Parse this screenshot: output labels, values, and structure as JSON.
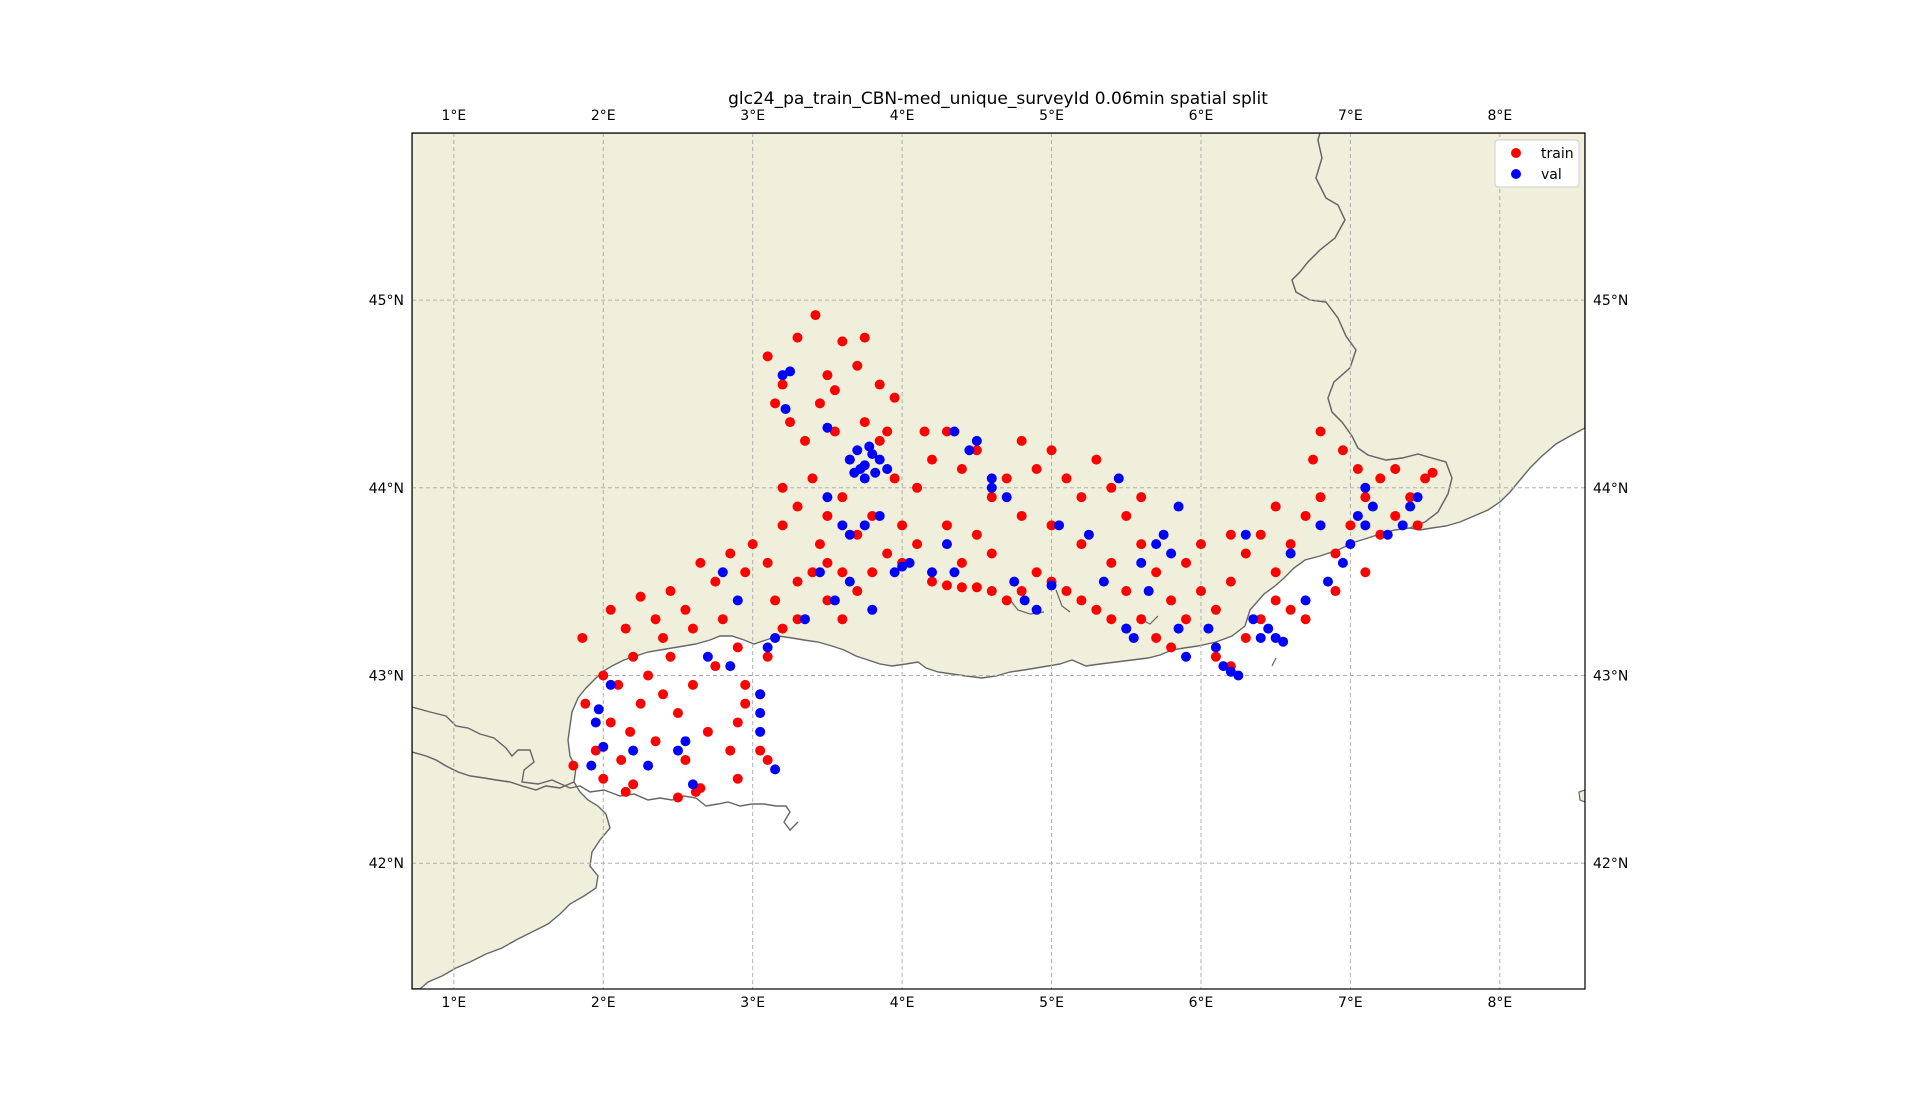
{
  "chart_data": {
    "type": "scatter",
    "title": "glc24_pa_train_CBN-med_unique_surveyId 0.06min spatial split",
    "xlabel": "",
    "ylabel": "",
    "xlim": [
      0.72,
      8.57
    ],
    "ylim": [
      41.33,
      45.89
    ],
    "grid": true,
    "legend_placement": "top-right",
    "x_ticks": [
      "1°E",
      "2°E",
      "3°E",
      "4°E",
      "5°E",
      "6°E",
      "7°E",
      "8°E"
    ],
    "x_tick_values": [
      1,
      2,
      3,
      4,
      5,
      6,
      7,
      8
    ],
    "y_ticks": [
      "42°N",
      "43°N",
      "44°N",
      "45°N"
    ],
    "y_tick_values": [
      42,
      43,
      44,
      45
    ],
    "colors": {
      "land": "#efefdb",
      "sea": "#ffffff",
      "coast": "#666666",
      "grid": "#b0b0b0",
      "train": "#ff0000",
      "val": "#0000ff"
    },
    "series": [
      {
        "name": "train",
        "color": "#ff0000",
        "points": [
          [
            1.8,
            42.52
          ],
          [
            1.88,
            42.85
          ],
          [
            1.95,
            42.6
          ],
          [
            2.0,
            42.45
          ],
          [
            2.05,
            42.75
          ],
          [
            2.1,
            42.95
          ],
          [
            2.12,
            42.55
          ],
          [
            2.18,
            42.7
          ],
          [
            2.2,
            42.42
          ],
          [
            2.25,
            42.85
          ],
          [
            2.3,
            43.0
          ],
          [
            2.35,
            42.65
          ],
          [
            2.4,
            42.9
          ],
          [
            2.45,
            43.1
          ],
          [
            2.5,
            42.8
          ],
          [
            2.55,
            42.55
          ],
          [
            2.6,
            42.95
          ],
          [
            2.65,
            42.4
          ],
          [
            2.7,
            42.7
          ],
          [
            2.75,
            43.05
          ],
          [
            2.85,
            42.6
          ],
          [
            2.9,
            42.45
          ],
          [
            2.95,
            42.85
          ],
          [
            1.86,
            43.2
          ],
          [
            2.05,
            43.35
          ],
          [
            2.15,
            43.25
          ],
          [
            2.25,
            43.42
          ],
          [
            2.35,
            43.3
          ],
          [
            2.45,
            43.45
          ],
          [
            2.55,
            43.35
          ],
          [
            2.65,
            43.6
          ],
          [
            2.75,
            43.5
          ],
          [
            2.85,
            43.65
          ],
          [
            2.95,
            43.55
          ],
          [
            3.0,
            43.7
          ],
          [
            3.1,
            43.6
          ],
          [
            3.15,
            43.4
          ],
          [
            3.2,
            43.8
          ],
          [
            2.6,
            43.25
          ],
          [
            2.8,
            43.3
          ],
          [
            2.9,
            43.15
          ],
          [
            2.4,
            43.2
          ],
          [
            2.2,
            43.1
          ],
          [
            2.0,
            43.0
          ],
          [
            2.5,
            42.35
          ],
          [
            2.62,
            42.38
          ],
          [
            2.15,
            42.38
          ],
          [
            2.9,
            42.75
          ],
          [
            3.05,
            42.6
          ],
          [
            2.95,
            42.95
          ],
          [
            3.1,
            44.7
          ],
          [
            3.2,
            44.55
          ],
          [
            3.3,
            44.8
          ],
          [
            3.42,
            44.92
          ],
          [
            3.5,
            44.6
          ],
          [
            3.6,
            44.78
          ],
          [
            3.7,
            44.65
          ],
          [
            3.75,
            44.8
          ],
          [
            3.85,
            44.55
          ],
          [
            3.95,
            44.48
          ],
          [
            3.25,
            44.35
          ],
          [
            3.35,
            44.25
          ],
          [
            3.45,
            44.45
          ],
          [
            3.55,
            44.3
          ],
          [
            3.65,
            44.15
          ],
          [
            3.75,
            44.35
          ],
          [
            3.85,
            44.25
          ],
          [
            3.95,
            44.05
          ],
          [
            3.2,
            44.0
          ],
          [
            3.3,
            43.9
          ],
          [
            3.4,
            44.05
          ],
          [
            3.5,
            43.85
          ],
          [
            3.6,
            43.95
          ],
          [
            3.7,
            43.75
          ],
          [
            3.8,
            43.85
          ],
          [
            3.9,
            43.65
          ],
          [
            4.0,
            43.8
          ],
          [
            4.1,
            44.0
          ],
          [
            4.2,
            44.15
          ],
          [
            4.3,
            44.3
          ],
          [
            4.4,
            44.1
          ],
          [
            4.5,
            44.2
          ],
          [
            4.6,
            43.95
          ],
          [
            4.7,
            44.05
          ],
          [
            4.8,
            44.25
          ],
          [
            4.9,
            44.1
          ],
          [
            5.0,
            44.2
          ],
          [
            5.1,
            44.05
          ],
          [
            5.2,
            43.95
          ],
          [
            5.3,
            44.15
          ],
          [
            5.4,
            44.0
          ],
          [
            5.5,
            43.85
          ],
          [
            5.6,
            43.7
          ],
          [
            5.7,
            43.55
          ],
          [
            5.8,
            43.4
          ],
          [
            5.9,
            43.6
          ],
          [
            6.0,
            43.45
          ],
          [
            6.1,
            43.35
          ],
          [
            6.2,
            43.5
          ],
          [
            6.3,
            43.65
          ],
          [
            6.4,
            43.75
          ],
          [
            6.5,
            43.55
          ],
          [
            6.6,
            43.7
          ],
          [
            6.7,
            43.85
          ],
          [
            6.8,
            43.95
          ],
          [
            6.9,
            43.65
          ],
          [
            7.0,
            43.8
          ],
          [
            7.1,
            43.95
          ],
          [
            7.2,
            44.05
          ],
          [
            7.3,
            43.85
          ],
          [
            7.4,
            43.95
          ],
          [
            7.5,
            44.05
          ],
          [
            7.55,
            44.08
          ],
          [
            6.8,
            44.3
          ],
          [
            6.75,
            44.15
          ],
          [
            6.95,
            44.2
          ],
          [
            7.05,
            44.1
          ],
          [
            4.2,
            43.5
          ],
          [
            4.3,
            43.48
          ],
          [
            4.4,
            43.47
          ],
          [
            4.5,
            43.47
          ],
          [
            4.6,
            43.45
          ],
          [
            4.7,
            43.4
          ],
          [
            4.8,
            43.45
          ],
          [
            4.9,
            43.55
          ],
          [
            5.0,
            43.5
          ],
          [
            5.1,
            43.45
          ],
          [
            5.2,
            43.4
          ],
          [
            5.3,
            43.35
          ],
          [
            5.4,
            43.3
          ],
          [
            5.5,
            43.25
          ],
          [
            5.6,
            43.3
          ],
          [
            5.7,
            43.2
          ],
          [
            5.8,
            43.15
          ],
          [
            6.1,
            43.1
          ],
          [
            6.2,
            43.05
          ],
          [
            6.3,
            43.2
          ],
          [
            6.4,
            43.3
          ],
          [
            6.5,
            43.4
          ],
          [
            6.6,
            43.35
          ],
          [
            3.3,
            43.5
          ],
          [
            3.4,
            43.55
          ],
          [
            3.5,
            43.6
          ],
          [
            3.6,
            43.55
          ],
          [
            3.7,
            43.45
          ],
          [
            3.2,
            43.25
          ],
          [
            3.3,
            43.3
          ],
          [
            3.1,
            43.1
          ],
          [
            3.05,
            42.9
          ],
          [
            3.1,
            42.55
          ],
          [
            3.6,
            43.3
          ],
          [
            3.5,
            43.4
          ],
          [
            4.0,
            43.6
          ],
          [
            4.1,
            43.7
          ],
          [
            4.3,
            43.8
          ],
          [
            4.4,
            43.6
          ],
          [
            4.5,
            43.75
          ],
          [
            4.6,
            43.65
          ],
          [
            4.8,
            43.85
          ],
          [
            5.0,
            43.8
          ],
          [
            5.2,
            43.7
          ],
          [
            5.4,
            43.6
          ],
          [
            5.6,
            43.95
          ],
          [
            5.5,
            43.45
          ],
          [
            5.9,
            43.3
          ],
          [
            6.0,
            43.7
          ],
          [
            6.2,
            43.75
          ],
          [
            6.5,
            43.9
          ],
          [
            6.7,
            43.3
          ],
          [
            6.9,
            43.45
          ],
          [
            7.1,
            43.55
          ],
          [
            7.2,
            43.75
          ],
          [
            7.3,
            44.1
          ],
          [
            7.45,
            43.8
          ],
          [
            3.15,
            44.45
          ],
          [
            3.55,
            44.52
          ],
          [
            3.9,
            44.3
          ],
          [
            4.15,
            44.3
          ],
          [
            3.8,
            43.55
          ],
          [
            3.45,
            43.7
          ]
        ]
      },
      {
        "name": "val",
        "color": "#0000ff",
        "points": [
          [
            1.97,
            42.82
          ],
          [
            1.95,
            42.75
          ],
          [
            2.0,
            42.62
          ],
          [
            1.92,
            42.52
          ],
          [
            2.05,
            42.95
          ],
          [
            2.2,
            42.6
          ],
          [
            2.3,
            42.52
          ],
          [
            2.5,
            42.6
          ],
          [
            2.55,
            42.65
          ],
          [
            2.6,
            42.42
          ],
          [
            2.7,
            43.1
          ],
          [
            2.85,
            43.05
          ],
          [
            2.8,
            43.55
          ],
          [
            2.9,
            43.4
          ],
          [
            3.05,
            42.8
          ],
          [
            3.05,
            42.7
          ],
          [
            3.05,
            42.9
          ],
          [
            3.1,
            43.15
          ],
          [
            3.15,
            43.2
          ],
          [
            3.15,
            42.5
          ],
          [
            3.2,
            44.6
          ],
          [
            3.25,
            44.62
          ],
          [
            3.5,
            44.32
          ],
          [
            3.22,
            44.42
          ],
          [
            3.65,
            44.15
          ],
          [
            3.7,
            44.2
          ],
          [
            3.75,
            44.12
          ],
          [
            3.8,
            44.18
          ],
          [
            3.72,
            44.1
          ],
          [
            3.85,
            44.15
          ],
          [
            3.78,
            44.22
          ],
          [
            3.68,
            44.08
          ],
          [
            3.82,
            44.08
          ],
          [
            3.75,
            44.05
          ],
          [
            3.9,
            44.1
          ],
          [
            3.6,
            43.8
          ],
          [
            3.65,
            43.75
          ],
          [
            3.75,
            43.8
          ],
          [
            3.85,
            43.85
          ],
          [
            3.5,
            43.95
          ],
          [
            3.95,
            43.55
          ],
          [
            4.0,
            43.58
          ],
          [
            4.05,
            43.6
          ],
          [
            4.3,
            43.7
          ],
          [
            4.2,
            43.55
          ],
          [
            4.35,
            43.55
          ],
          [
            4.45,
            44.2
          ],
          [
            4.5,
            44.25
          ],
          [
            4.35,
            44.3
          ],
          [
            4.6,
            44.0
          ],
          [
            4.7,
            43.95
          ],
          [
            4.75,
            43.5
          ],
          [
            4.82,
            43.4
          ],
          [
            4.9,
            43.35
          ],
          [
            5.0,
            43.48
          ],
          [
            5.05,
            43.8
          ],
          [
            5.25,
            43.75
          ],
          [
            5.35,
            43.5
          ],
          [
            5.5,
            43.25
          ],
          [
            5.55,
            43.2
          ],
          [
            5.6,
            43.6
          ],
          [
            5.7,
            43.7
          ],
          [
            5.75,
            43.75
          ],
          [
            5.8,
            43.65
          ],
          [
            5.65,
            43.45
          ],
          [
            5.85,
            43.25
          ],
          [
            5.9,
            43.1
          ],
          [
            6.05,
            43.25
          ],
          [
            6.1,
            43.15
          ],
          [
            6.15,
            43.05
          ],
          [
            6.2,
            43.02
          ],
          [
            6.25,
            43.0
          ],
          [
            6.35,
            43.3
          ],
          [
            6.4,
            43.2
          ],
          [
            6.45,
            43.25
          ],
          [
            6.5,
            43.2
          ],
          [
            6.55,
            43.18
          ],
          [
            6.7,
            43.4
          ],
          [
            6.85,
            43.5
          ],
          [
            6.95,
            43.6
          ],
          [
            7.0,
            43.7
          ],
          [
            7.05,
            43.85
          ],
          [
            7.1,
            43.8
          ],
          [
            7.15,
            43.9
          ],
          [
            7.25,
            43.75
          ],
          [
            7.35,
            43.8
          ],
          [
            7.4,
            43.9
          ],
          [
            7.45,
            43.95
          ],
          [
            7.1,
            44.0
          ],
          [
            6.8,
            43.8
          ],
          [
            3.35,
            43.3
          ],
          [
            3.45,
            43.55
          ],
          [
            3.55,
            43.4
          ],
          [
            3.65,
            43.5
          ],
          [
            3.8,
            43.35
          ],
          [
            4.6,
            44.05
          ],
          [
            5.45,
            44.05
          ],
          [
            5.85,
            43.9
          ],
          [
            6.3,
            43.75
          ],
          [
            6.6,
            43.65
          ]
        ]
      }
    ]
  },
  "legend": {
    "train_label": "train",
    "val_label": "val"
  }
}
